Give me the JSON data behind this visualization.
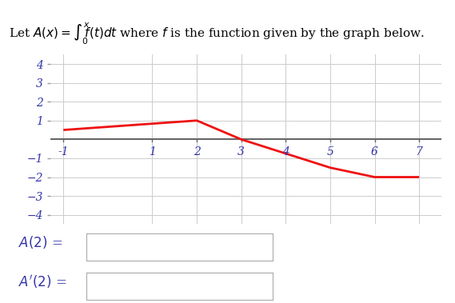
{
  "line_x": [
    -1,
    2,
    3,
    5,
    6,
    7
  ],
  "line_y": [
    0.5,
    1,
    0,
    -1.5,
    -2,
    -2
  ],
  "line_color": "#ee1111",
  "line_width": 2.0,
  "xlim": [
    -1.3,
    7.5
  ],
  "ylim": [
    -4.5,
    4.5
  ],
  "xticks": [
    -1,
    1,
    2,
    3,
    4,
    5,
    6,
    7
  ],
  "yticks": [
    -4,
    -3,
    -2,
    -1,
    1,
    2,
    3,
    4
  ],
  "grid_color": "#cccccc",
  "haxis_color": "#666666",
  "tick_color": "#3333aa",
  "background_color": "#ffffff",
  "tick_fontsize": 10,
  "title_fontsize": 11,
  "label_fontsize": 12,
  "box_facecolor": "#ffffff",
  "box_edgecolor": "#aaaaaa"
}
